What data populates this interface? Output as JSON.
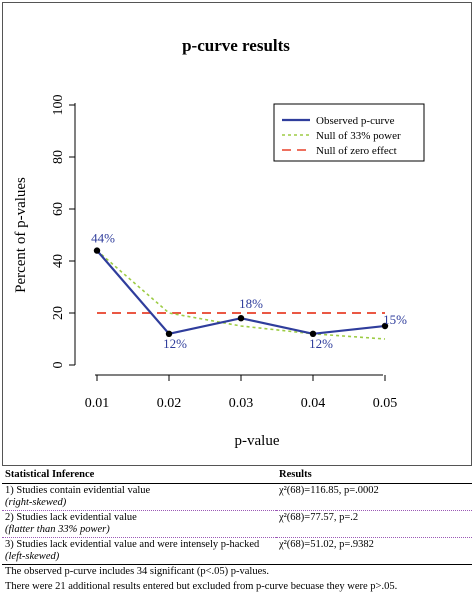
{
  "chart_data": {
    "type": "line",
    "title": "p-curve results",
    "xlabel": "p-value",
    "ylabel": "Percent of p-values",
    "x": [
      0.01,
      0.02,
      0.03,
      0.04,
      0.05
    ],
    "x_tick_labels": [
      "0.01",
      "0.02",
      "0.03",
      "0.04",
      "0.05"
    ],
    "ylim": [
      0,
      100
    ],
    "y_ticks": [
      0,
      20,
      40,
      60,
      80,
      100
    ],
    "y_tick_labels": [
      "0",
      "20",
      "40",
      "60",
      "80",
      "100"
    ],
    "series": [
      {
        "name": "Observed p-curve",
        "values": [
          44,
          12,
          18,
          12,
          15
        ],
        "color": "#2f3d9c",
        "style": "solid",
        "data_labels": [
          "44%",
          "12%",
          "18%",
          "12%",
          "15%"
        ]
      },
      {
        "name": "Null of 33% power",
        "values": [
          44,
          20,
          15,
          12,
          10
        ],
        "color": "#9dcc45",
        "style": "dotted"
      },
      {
        "name": "Null of zero effect",
        "values": [
          20,
          20,
          20,
          20,
          20
        ],
        "color": "#e8402a",
        "style": "dashed"
      }
    ],
    "legend": "top-right",
    "grid": false
  },
  "table": {
    "header": [
      "Statistical Inference",
      "Results"
    ],
    "rows": [
      {
        "inference": "1) Studies contain evidential value",
        "note": "(right-skewed)",
        "result": "χ²(68)=116.85, p=.0002"
      },
      {
        "inference": "2) Studies lack evidential value",
        "note": "(flatter than 33% power)",
        "result": "χ²(68)=77.57, p=.2"
      },
      {
        "inference": "3) Studies lack evidential value and were intensely p-hacked",
        "note": "(left-skewed)",
        "result": "χ²(68)=51.02, p=.9382"
      }
    ]
  },
  "footer": [
    "The observed p-curve includes 34 significant (p<.05) p-values.",
    "There were 21 additional results entered but excluded from p-curve becuase they were p>.05."
  ]
}
